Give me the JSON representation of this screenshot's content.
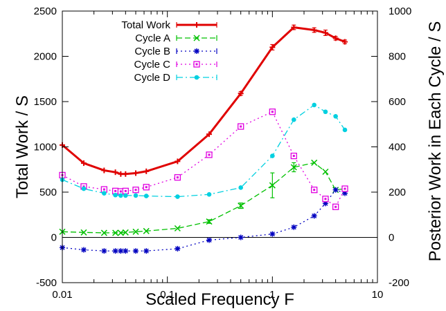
{
  "chart_data": {
    "type": "line",
    "xlabel": "Scaled Frequency F",
    "ylabel_left": "Total Work / S",
    "ylabel_right": "Posterior Work in Each Cycle / S",
    "x_scale": "log",
    "xlim": [
      0.01,
      10
    ],
    "ylim_left": [
      -500,
      2500
    ],
    "ylim_right": [
      -200,
      1000
    ],
    "x_ticks": [
      {
        "value": 0.01,
        "label": "0.01"
      },
      {
        "value": 0.1,
        "label": "0.1"
      },
      {
        "value": 1,
        "label": "1"
      },
      {
        "value": 10,
        "label": "10"
      }
    ],
    "y_ticks_left": [
      {
        "value": -500,
        "label": "-500"
      },
      {
        "value": 0,
        "label": "0"
      },
      {
        "value": 500,
        "label": "500"
      },
      {
        "value": 1000,
        "label": "1000"
      },
      {
        "value": 1500,
        "label": "1500"
      },
      {
        "value": 2000,
        "label": "2000"
      },
      {
        "value": 2500,
        "label": "2500"
      }
    ],
    "y_ticks_right": [
      {
        "value": -200,
        "label": "-200"
      },
      {
        "value": 0,
        "label": "0"
      },
      {
        "value": 200,
        "label": "200"
      },
      {
        "value": 400,
        "label": "400"
      },
      {
        "value": 600,
        "label": "600"
      },
      {
        "value": 800,
        "label": "800"
      },
      {
        "value": 1000,
        "label": "1000"
      }
    ],
    "zero_line": true,
    "legend_position": "top-left",
    "series": [
      {
        "name": "Total Work",
        "axis": "left",
        "color": "#e00000",
        "line": "solid",
        "marker": "plus",
        "x": [
          0.01,
          0.016,
          0.025,
          0.032,
          0.036,
          0.04,
          0.05,
          0.063,
          0.125,
          0.25,
          0.5,
          1.0,
          1.6,
          2.5,
          3.2,
          4.0,
          4.9
        ],
        "y": [
          1020,
          820,
          740,
          720,
          700,
          700,
          710,
          730,
          840,
          1140,
          1590,
          2100,
          2320,
          2290,
          2260,
          2200,
          2160
        ],
        "err": [
          0,
          0,
          0,
          0,
          0,
          0,
          0,
          0,
          0,
          0,
          20,
          30,
          25,
          25,
          30,
          20,
          20
        ]
      },
      {
        "name": "Cycle A",
        "axis": "right",
        "color": "#00c000",
        "line": "dashed",
        "marker": "x",
        "x": [
          0.01,
          0.016,
          0.025,
          0.032,
          0.036,
          0.04,
          0.05,
          0.063,
          0.125,
          0.25,
          0.5,
          1.0,
          1.6,
          2.5,
          3.2,
          4.0,
          4.9
        ],
        "y": [
          25,
          22,
          20,
          20,
          20,
          22,
          25,
          28,
          40,
          70,
          140,
          230,
          310,
          330,
          290,
          210,
          215
        ],
        "err": [
          0,
          0,
          0,
          0,
          0,
          0,
          0,
          0,
          0,
          8,
          12,
          55,
          20,
          0,
          0,
          0,
          0
        ]
      },
      {
        "name": "Cycle B",
        "axis": "right",
        "color": "#0000c0",
        "line": "dotted",
        "marker": "star",
        "x": [
          0.01,
          0.016,
          0.025,
          0.032,
          0.036,
          0.04,
          0.05,
          0.063,
          0.125,
          0.25,
          0.5,
          1.0,
          1.6,
          2.5,
          3.2,
          4.0,
          4.9
        ],
        "y": [
          -45,
          -55,
          -60,
          -60,
          -60,
          -60,
          -60,
          -60,
          -50,
          -12,
          0,
          15,
          45,
          95,
          150,
          210,
          195
        ],
        "err": [
          0,
          0,
          0,
          0,
          0,
          0,
          0,
          0,
          0,
          0,
          0,
          0,
          0,
          0,
          0,
          0,
          0
        ]
      },
      {
        "name": "Cycle C",
        "axis": "right",
        "color": "#e000e0",
        "line": "dotted",
        "marker": "square",
        "x": [
          0.01,
          0.016,
          0.025,
          0.032,
          0.036,
          0.04,
          0.05,
          0.063,
          0.125,
          0.25,
          0.5,
          1.0,
          1.6,
          2.5,
          3.2,
          4.0,
          4.9
        ],
        "y": [
          275,
          225,
          212,
          205,
          203,
          205,
          210,
          222,
          265,
          365,
          490,
          555,
          360,
          210,
          170,
          135,
          215
        ],
        "err": [
          0,
          0,
          0,
          0,
          0,
          0,
          0,
          0,
          0,
          0,
          0,
          0,
          0,
          0,
          0,
          0,
          0
        ]
      },
      {
        "name": "Cycle D",
        "axis": "right",
        "color": "#00d0e0",
        "line": "dashdot",
        "marker": "circle",
        "x": [
          0.01,
          0.016,
          0.025,
          0.032,
          0.036,
          0.04,
          0.05,
          0.063,
          0.125,
          0.25,
          0.5,
          1.0,
          1.6,
          2.5,
          3.2,
          4.0,
          4.9
        ],
        "y": [
          255,
          215,
          195,
          187,
          185,
          185,
          185,
          183,
          180,
          190,
          220,
          360,
          520,
          585,
          555,
          535,
          475
        ],
        "err": [
          0,
          0,
          0,
          0,
          0,
          0,
          0,
          0,
          0,
          0,
          0,
          0,
          0,
          0,
          0,
          0,
          0
        ]
      }
    ]
  }
}
